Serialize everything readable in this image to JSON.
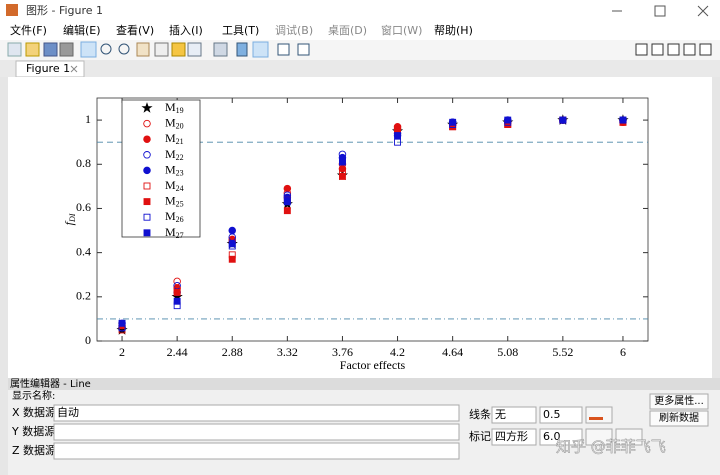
{
  "window": {
    "title": "图形 - Figure 1",
    "menus": [
      "文件(F)",
      "编辑(E)",
      "查看(V)",
      "插入(I)",
      "工具(T)",
      "调试(B)",
      "桌面(D)",
      "窗口(W)",
      "帮助(H)"
    ]
  },
  "tab": {
    "label": "Figure 1"
  },
  "chart_data": {
    "type": "scatter",
    "xlabel": "Factor effects",
    "ylabel": "fDI",
    "x": [
      2,
      2.44,
      2.88,
      3.32,
      3.76,
      4.2,
      4.64,
      5.08,
      5.52,
      6
    ],
    "xlim": [
      1.8,
      6.2
    ],
    "xticks": [
      2,
      2.44,
      2.88,
      3.32,
      3.76,
      4.2,
      4.64,
      5.08,
      5.52,
      6
    ],
    "ylim": [
      0,
      1.1
    ],
    "yticks": [
      0,
      0.2,
      0.4,
      0.6,
      0.8,
      1
    ],
    "reference_lines": [
      {
        "y": 0.9,
        "style": "dashed",
        "color": "#4a86a8"
      },
      {
        "y": 0.1,
        "style": "dashdot",
        "color": "#4a86a8"
      }
    ],
    "legend": "upper left",
    "series": [
      {
        "name": "M19",
        "color": "#000000",
        "marker": "star",
        "filled": true,
        "values": [
          0.05,
          0.2,
          0.44,
          0.62,
          0.75,
          0.95,
          0.98,
          0.99,
          1,
          1
        ]
      },
      {
        "name": "M20",
        "color": "#e01010",
        "marker": "circle",
        "filled": false,
        "values": [
          0.06,
          0.27,
          0.45,
          0.67,
          0.8,
          0.96,
          0.98,
          0.99,
          1,
          0.99
        ]
      },
      {
        "name": "M21",
        "color": "#e01010",
        "marker": "circle",
        "filled": true,
        "values": [
          0.07,
          0.24,
          0.46,
          0.69,
          0.78,
          0.97,
          0.98,
          0.99,
          1,
          1
        ]
      },
      {
        "name": "M22",
        "color": "#1010d0",
        "marker": "circle",
        "filled": false,
        "values": [
          0.06,
          0.25,
          0.47,
          0.66,
          0.845,
          0.94,
          0.99,
          1,
          1,
          1
        ]
      },
      {
        "name": "M23",
        "color": "#1010d0",
        "marker": "circle",
        "filled": true,
        "values": [
          0.08,
          0.22,
          0.5,
          0.65,
          0.83,
          0.93,
          0.99,
          1,
          1,
          1
        ]
      },
      {
        "name": "M24",
        "color": "#e01010",
        "marker": "square",
        "filled": false,
        "values": [
          0.05,
          0.23,
          0.39,
          0.64,
          0.77,
          0.95,
          0.97,
          0.98,
          1,
          0.99
        ]
      },
      {
        "name": "M25",
        "color": "#e01010",
        "marker": "square",
        "filled": true,
        "values": [
          0.07,
          0.22,
          0.37,
          0.59,
          0.745,
          0.96,
          0.97,
          0.98,
          1,
          0.99
        ]
      },
      {
        "name": "M26",
        "color": "#1010d0",
        "marker": "square",
        "filled": false,
        "values": [
          0.06,
          0.16,
          0.43,
          0.64,
          0.82,
          0.9,
          0.98,
          0.99,
          1,
          1
        ]
      },
      {
        "name": "M27",
        "color": "#1010d0",
        "marker": "square",
        "filled": true,
        "values": [
          0.08,
          0.18,
          0.44,
          0.63,
          0.81,
          0.93,
          0.99,
          1,
          1,
          1
        ]
      }
    ]
  },
  "property_editor": {
    "title": "属性编辑器 - Line",
    "display_name_label": "显示名称:",
    "x_source_label": "X 数据源:",
    "x_source_value": "自动",
    "y_source_label": "Y 数据源:",
    "z_source_label": "Z 数据源:",
    "line_label": "线条:",
    "line_value": "无",
    "line_width": "0.5",
    "marker_label": "标记:",
    "marker_value": "四方形",
    "marker_size": "6.0",
    "more_properties": "更多属性...",
    "refresh_data": "刷新数据"
  },
  "watermark": "知乎 @菲菲飞飞"
}
